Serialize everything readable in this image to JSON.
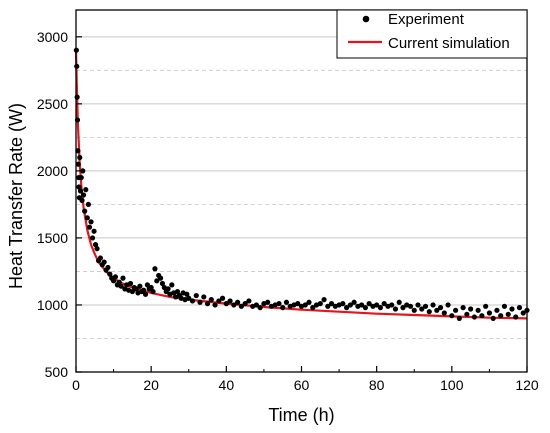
{
  "chart_data": {
    "type": "scatter",
    "xlabel": "Time (h)",
    "ylabel": "Heat Transfer Rate (W)",
    "xlim": [
      0,
      120
    ],
    "ylim": [
      500,
      3200
    ],
    "x_ticks": [
      0,
      20,
      40,
      60,
      80,
      100,
      120
    ],
    "y_ticks": [
      500,
      1000,
      1500,
      2000,
      2500,
      3000
    ],
    "x_tick_labels": [
      "0",
      "20",
      "40",
      "60",
      "80",
      "100",
      "120"
    ],
    "y_tick_labels": [
      "500",
      "1000",
      "1500",
      "2000",
      "2500",
      "3000"
    ],
    "grid": "horizontal dashed lines at 250 W spacing",
    "legend_position": "top-right",
    "colors": {
      "experiment": "#000000",
      "simulation": "#e8141b",
      "grid": "#c8c8c8"
    },
    "series": [
      {
        "name": "Experiment",
        "kind": "scatter",
        "points": [
          [
            0.1,
            2900
          ],
          [
            0.2,
            2780
          ],
          [
            0.3,
            2550
          ],
          [
            0.4,
            2380
          ],
          [
            0.5,
            2150
          ],
          [
            0.6,
            2050
          ],
          [
            0.7,
            1950
          ],
          [
            0.8,
            1880
          ],
          [
            0.9,
            1800
          ],
          [
            1.0,
            2100
          ],
          [
            1.2,
            1850
          ],
          [
            1.4,
            1950
          ],
          [
            1.6,
            1780
          ],
          [
            1.8,
            2000
          ],
          [
            2.0,
            1820
          ],
          [
            2.3,
            1700
          ],
          [
            2.6,
            1860
          ],
          [
            3.0,
            1650
          ],
          [
            3.3,
            1750
          ],
          [
            3.6,
            1580
          ],
          [
            4.0,
            1620
          ],
          [
            4.4,
            1500
          ],
          [
            4.8,
            1550
          ],
          [
            5.2,
            1450
          ],
          [
            5.6,
            1420
          ],
          [
            6.0,
            1330
          ],
          [
            6.5,
            1350
          ],
          [
            7.0,
            1300
          ],
          [
            7.5,
            1320
          ],
          [
            8.0,
            1260
          ],
          [
            8.5,
            1280
          ],
          [
            9.0,
            1230
          ],
          [
            9.5,
            1200
          ],
          [
            10.0,
            1180
          ],
          [
            10.5,
            1210
          ],
          [
            11.0,
            1150
          ],
          [
            11.5,
            1170
          ],
          [
            12.0,
            1140
          ],
          [
            12.5,
            1200
          ],
          [
            13.0,
            1120
          ],
          [
            13.5,
            1150
          ],
          [
            14.0,
            1110
          ],
          [
            14.5,
            1160
          ],
          [
            15.0,
            1100
          ],
          [
            15.5,
            1130
          ],
          [
            16.0,
            1120
          ],
          [
            16.5,
            1090
          ],
          [
            17.0,
            1140
          ],
          [
            17.5,
            1100
          ],
          [
            18.0,
            1110
          ],
          [
            18.5,
            1080
          ],
          [
            19.0,
            1150
          ],
          [
            19.5,
            1120
          ],
          [
            20.0,
            1130
          ],
          [
            20.5,
            1100
          ],
          [
            21.0,
            1270
          ],
          [
            21.5,
            1180
          ],
          [
            22.0,
            1220
          ],
          [
            22.5,
            1200
          ],
          [
            23.0,
            1160
          ],
          [
            23.5,
            1130
          ],
          [
            24.0,
            1100
          ],
          [
            24.5,
            1120
          ],
          [
            25.0,
            1080
          ],
          [
            25.5,
            1150
          ],
          [
            26.0,
            1090
          ],
          [
            26.5,
            1060
          ],
          [
            27.0,
            1100
          ],
          [
            27.5,
            1070
          ],
          [
            28.0,
            1050
          ],
          [
            28.5,
            1090
          ],
          [
            29.0,
            1040
          ],
          [
            29.5,
            1080
          ],
          [
            30.0,
            1050
          ],
          [
            31.0,
            1030
          ],
          [
            32.0,
            1070
          ],
          [
            33.0,
            1020
          ],
          [
            34.0,
            1060
          ],
          [
            35.0,
            1010
          ],
          [
            36.0,
            1040
          ],
          [
            37.0,
            1000
          ],
          [
            38.0,
            1030
          ],
          [
            39.0,
            1050
          ],
          [
            40.0,
            1010
          ],
          [
            41.0,
            1030
          ],
          [
            42.0,
            1000
          ],
          [
            43.0,
            1020
          ],
          [
            44.0,
            990
          ],
          [
            45.0,
            1010
          ],
          [
            46.0,
            1030
          ],
          [
            47.0,
            990
          ],
          [
            48.0,
            1000
          ],
          [
            49.0,
            980
          ],
          [
            50.0,
            1010
          ],
          [
            51.0,
            1020
          ],
          [
            52.0,
            990
          ],
          [
            53.0,
            1000
          ],
          [
            54.0,
            1010
          ],
          [
            55.0,
            980
          ],
          [
            56.0,
            1020
          ],
          [
            57.0,
            990
          ],
          [
            58.0,
            1000
          ],
          [
            59.0,
            1010
          ],
          [
            60.0,
            990
          ],
          [
            61.0,
            1000
          ],
          [
            62.0,
            1020
          ],
          [
            63.0,
            980
          ],
          [
            64.0,
            1000
          ],
          [
            65.0,
            1010
          ],
          [
            66.0,
            1040
          ],
          [
            67.0,
            990
          ],
          [
            68.0,
            1010
          ],
          [
            69.0,
            990
          ],
          [
            70.0,
            1000
          ],
          [
            71.0,
            1010
          ],
          [
            72.0,
            980
          ],
          [
            73.0,
            1000
          ],
          [
            74.0,
            1020
          ],
          [
            75.0,
            990
          ],
          [
            76.0,
            1000
          ],
          [
            77.0,
            980
          ],
          [
            78.0,
            1010
          ],
          [
            79.0,
            990
          ],
          [
            80.0,
            1000
          ],
          [
            81.0,
            980
          ],
          [
            82.0,
            1010
          ],
          [
            83.0,
            990
          ],
          [
            84.0,
            1000
          ],
          [
            85.0,
            970
          ],
          [
            86.0,
            1020
          ],
          [
            87.0,
            980
          ],
          [
            88.0,
            1000
          ],
          [
            89.0,
            990
          ],
          [
            90.0,
            960
          ],
          [
            91.0,
            1000
          ],
          [
            92.0,
            970
          ],
          [
            93.0,
            990
          ],
          [
            94.0,
            950
          ],
          [
            95.0,
            1000
          ],
          [
            96.0,
            960
          ],
          [
            97.0,
            980
          ],
          [
            98.0,
            940
          ],
          [
            99.0,
            1000
          ],
          [
            100.0,
            920
          ],
          [
            101.0,
            960
          ],
          [
            102.0,
            900
          ],
          [
            103.0,
            980
          ],
          [
            104.0,
            930
          ],
          [
            105.0,
            970
          ],
          [
            106.0,
            910
          ],
          [
            107.0,
            960
          ],
          [
            108.0,
            920
          ],
          [
            109.0,
            990
          ],
          [
            110.0,
            940
          ],
          [
            111.0,
            900
          ],
          [
            112.0,
            960
          ],
          [
            113.0,
            920
          ],
          [
            114.0,
            990
          ],
          [
            115.0,
            930
          ],
          [
            116.0,
            970
          ],
          [
            117.0,
            910
          ],
          [
            118.0,
            980
          ],
          [
            119.0,
            940
          ],
          [
            120.0,
            960
          ]
        ]
      },
      {
        "name": "Current simulation",
        "kind": "line",
        "points": [
          [
            0.0,
            2900
          ],
          [
            0.2,
            2650
          ],
          [
            0.5,
            2350
          ],
          [
            1.0,
            2050
          ],
          [
            1.5,
            1860
          ],
          [
            2.0,
            1730
          ],
          [
            3.0,
            1560
          ],
          [
            4.0,
            1450
          ],
          [
            5.0,
            1380
          ],
          [
            6.0,
            1320
          ],
          [
            8.0,
            1250
          ],
          [
            10.0,
            1200
          ],
          [
            12.0,
            1165
          ],
          [
            15.0,
            1130
          ],
          [
            20.0,
            1090
          ],
          [
            25.0,
            1060
          ],
          [
            30.0,
            1040
          ],
          [
            40.0,
            1010
          ],
          [
            50.0,
            985
          ],
          [
            60.0,
            965
          ],
          [
            70.0,
            950
          ],
          [
            80.0,
            935
          ],
          [
            90.0,
            925
          ],
          [
            100.0,
            915
          ],
          [
            110.0,
            905
          ],
          [
            120.0,
            900
          ]
        ]
      }
    ]
  }
}
